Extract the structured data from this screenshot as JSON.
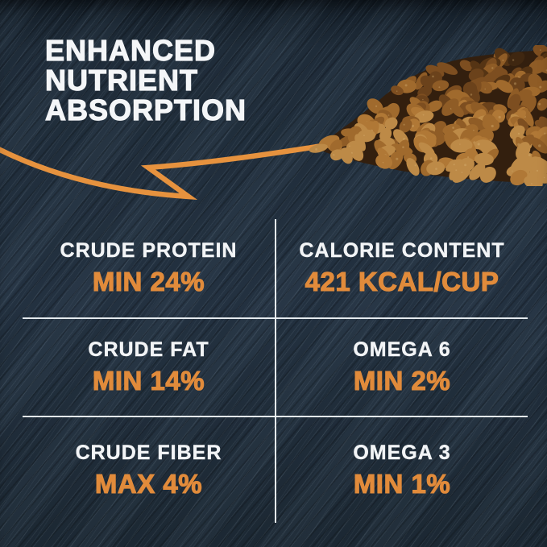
{
  "page": {
    "background_color": "#1F2B37",
    "accent_color": "#E18B3B",
    "text_color": "#F4F6F8",
    "divider_color": "#EEF3F7"
  },
  "headline": {
    "line1": "ENHANCED",
    "line2": "NUTRIENT",
    "line3": "ABSORPTION"
  },
  "illustration": {
    "arrow_icon": "hand-drawn-arrow",
    "arrow_color": "#E6923E",
    "kibble_image": "pile-of-dry-dog-food-kibble",
    "kibble_base_color": "#331F0E",
    "kibble_palette": [
      "#3F2711",
      "#553414",
      "#6B421B",
      "#7D4E20",
      "#8F5C26",
      "#A06A2D",
      "#B07836",
      "#BD8A47"
    ]
  },
  "nutrition_grid": {
    "cells": [
      {
        "label": "CRUDE PROTEIN",
        "value": "MIN 24%"
      },
      {
        "label": "CALORIE CONTENT",
        "value": "421 KCAL/CUP"
      },
      {
        "label": "CRUDE FAT",
        "value": "MIN 14%"
      },
      {
        "label": "OMEGA 6",
        "value": "MIN 2%"
      },
      {
        "label": "CRUDE FIBER",
        "value": "MAX 4%"
      },
      {
        "label": "OMEGA 3",
        "value": "MIN 1%"
      }
    ]
  }
}
